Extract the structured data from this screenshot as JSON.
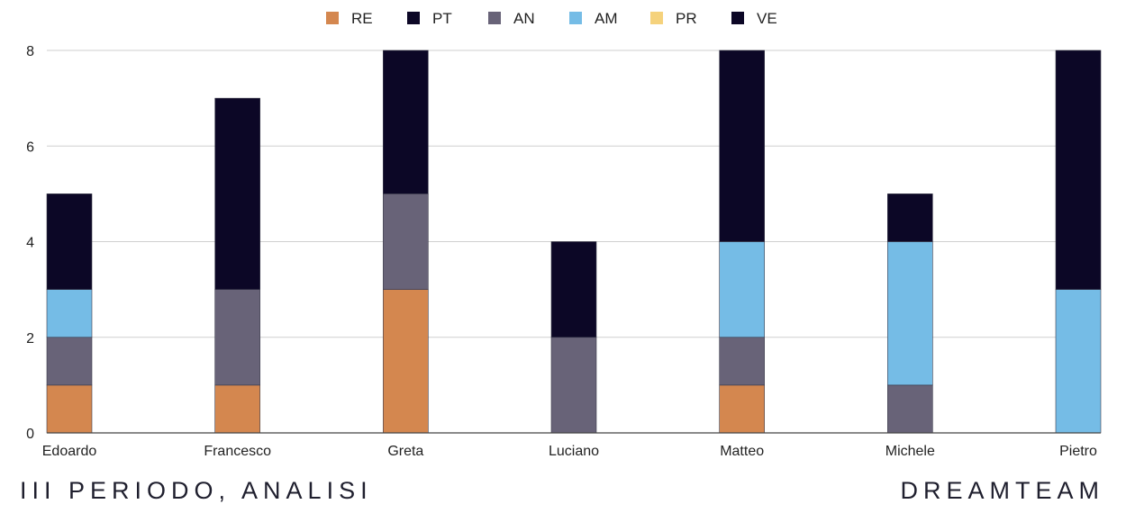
{
  "chart_data": {
    "type": "bar",
    "stacked": true,
    "categories": [
      "Edoardo",
      "Francesco",
      "Greta",
      "Luciano",
      "Matteo",
      "Michele",
      "Pietro"
    ],
    "series": [
      {
        "name": "RE",
        "color": "#D4874F",
        "values": [
          1,
          1,
          3,
          0,
          1,
          0,
          0
        ]
      },
      {
        "name": "PT",
        "color": "#0C0726",
        "values": [
          0,
          0,
          0,
          0,
          0,
          0,
          0
        ]
      },
      {
        "name": "AN",
        "color": "#686378",
        "values": [
          1,
          2,
          2,
          2,
          1,
          1,
          0
        ]
      },
      {
        "name": "AM",
        "color": "#75BCE6",
        "values": [
          1,
          0,
          0,
          0,
          2,
          3,
          3
        ]
      },
      {
        "name": "PR",
        "color": "#F5D27C",
        "values": [
          0,
          0,
          0,
          0,
          0,
          0,
          0
        ]
      },
      {
        "name": "VE",
        "color": "#0C0726",
        "values": [
          2,
          4,
          3,
          2,
          4,
          1,
          5
        ]
      }
    ],
    "ylim": [
      0,
      8
    ],
    "yticks": [
      "0",
      "2",
      "4",
      "6",
      "8"
    ],
    "grid": true,
    "legend_position": "top-center"
  },
  "footer": {
    "left": "III PERIODO, ANALISI",
    "right": "DREAMTEAM"
  }
}
